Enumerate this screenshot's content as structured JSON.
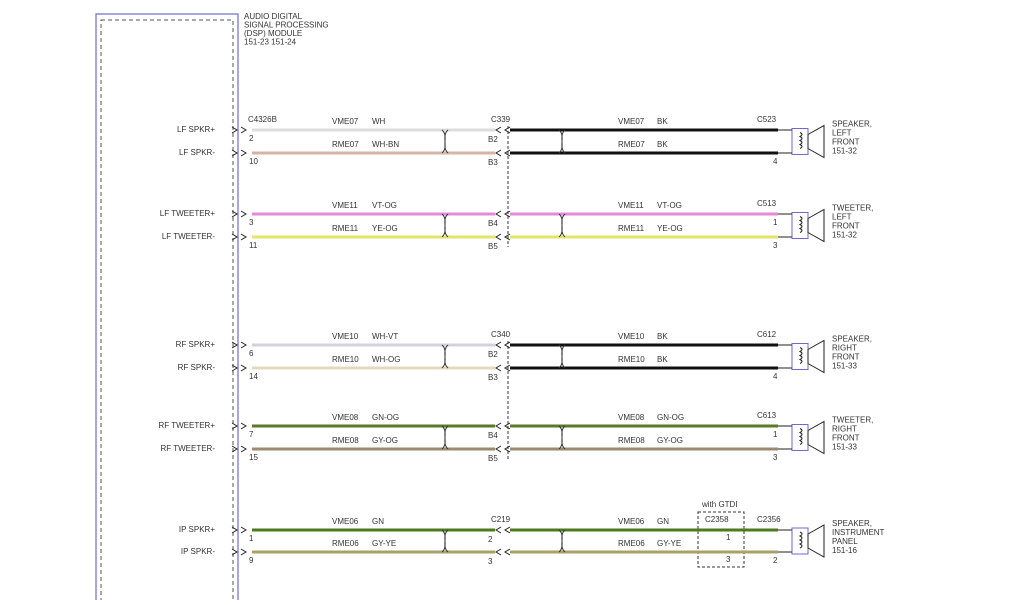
{
  "module": {
    "label": [
      "AUDIO DIGITAL",
      "SIGNAL PROCESSING",
      "(DSP) MODULE",
      "151-23   151-24"
    ]
  },
  "groups": [
    {
      "connector_left": "C4326B",
      "connector_mid": "C339",
      "connector_right": "C523",
      "device": [
        "SPEAKER,",
        "LEFT",
        "FRONT",
        "151-32"
      ],
      "wires": [
        {
          "signal": "LF SPKR+",
          "left_pin": "2",
          "circuit_left": "VME07",
          "code_left": "WH",
          "color_left": "#dcdcdc",
          "mid_pin": "B2",
          "circuit_right": "VME07",
          "code_right": "BK",
          "color_right": "#111111"
        },
        {
          "signal": "LF SPKR-",
          "left_pin": "10",
          "circuit_left": "RME07",
          "code_left": "WH-BN",
          "color_left": "#d6b2a8",
          "mid_pin": "B3",
          "circuit_right": "RME07",
          "code_right": "BK",
          "color_right": "#111111",
          "right_pin": "4"
        }
      ]
    },
    {
      "connector_right": "C513",
      "device": [
        "TWEETER,",
        "LEFT",
        "FRONT",
        "151-32"
      ],
      "wires": [
        {
          "signal": "LF TWEETER+",
          "left_pin": "3",
          "circuit_left": "VME11",
          "code_left": "VT-OG",
          "color_left": "#e58ad8",
          "mid_pin": "B4",
          "circuit_right": "VME11",
          "code_right": "VT-OG",
          "color_right": "#e58ad8",
          "right_pin": "1"
        },
        {
          "signal": "LF TWEETER-",
          "left_pin": "11",
          "circuit_left": "RME11",
          "code_left": "YE-OG",
          "color_left": "#e4e36a",
          "mid_pin": "B5",
          "circuit_right": "RME11",
          "code_right": "YE-OG",
          "color_right": "#e4e36a",
          "right_pin": "3"
        }
      ]
    },
    {
      "connector_mid": "C340",
      "connector_right": "C612",
      "device": [
        "SPEAKER,",
        "RIGHT",
        "FRONT",
        "151-33"
      ],
      "wires": [
        {
          "signal": "RF SPKR+",
          "left_pin": "6",
          "circuit_left": "VME10",
          "code_left": "WH-VT",
          "color_left": "#d4d0dc",
          "mid_pin": "B2",
          "circuit_right": "VME10",
          "code_right": "BK",
          "color_right": "#111111"
        },
        {
          "signal": "RF SPKR-",
          "left_pin": "14",
          "circuit_left": "RME10",
          "code_left": "WH-OG",
          "color_left": "#e4d8c0",
          "mid_pin": "B3",
          "circuit_right": "RME10",
          "code_right": "BK",
          "color_right": "#111111",
          "right_pin": "4"
        }
      ]
    },
    {
      "connector_right": "C613",
      "device": [
        "TWEETER,",
        "RIGHT",
        "FRONT",
        "151-33"
      ],
      "wires": [
        {
          "signal": "RF TWEETER+",
          "left_pin": "7",
          "circuit_left": "VME08",
          "code_left": "GN-OG",
          "color_left": "#5a7a2a",
          "mid_pin": "B4",
          "circuit_right": "VME08",
          "code_right": "GN-OG",
          "color_right": "#5a7a2a",
          "right_pin": "1"
        },
        {
          "signal": "RF TWEETER-",
          "left_pin": "15",
          "circuit_left": "RME08",
          "code_left": "GY-OG",
          "color_left": "#9a8a70",
          "mid_pin": "B5",
          "circuit_right": "RME08",
          "code_right": "GY-OG",
          "color_right": "#9a8a70",
          "right_pin": "3"
        }
      ]
    },
    {
      "connector_mid": "C219",
      "inline_note": "with GTDI",
      "inline_connector": "C2358",
      "connector_right": "C2356",
      "device": [
        "SPEAKER,",
        "INSTRUMENT",
        "PANEL",
        "151-16"
      ],
      "wires": [
        {
          "signal": "IP SPKR+",
          "left_pin": "1",
          "circuit_left": "VME06",
          "code_left": "GN",
          "color_left": "#4e7a1e",
          "mid_pin": "2",
          "circuit_right": "VME06",
          "code_right": "GN",
          "color_right": "#4e7a1e",
          "inline_pin": "1"
        },
        {
          "signal": "IP SPKR-",
          "left_pin": "9",
          "circuit_left": "RME06",
          "code_left": "GY-YE",
          "color_left": "#a8a068",
          "mid_pin": "3",
          "circuit_right": "RME06",
          "code_right": "GY-YE",
          "color_right": "#a8a068",
          "inline_pin": "3",
          "right_pin": "2"
        }
      ]
    }
  ]
}
